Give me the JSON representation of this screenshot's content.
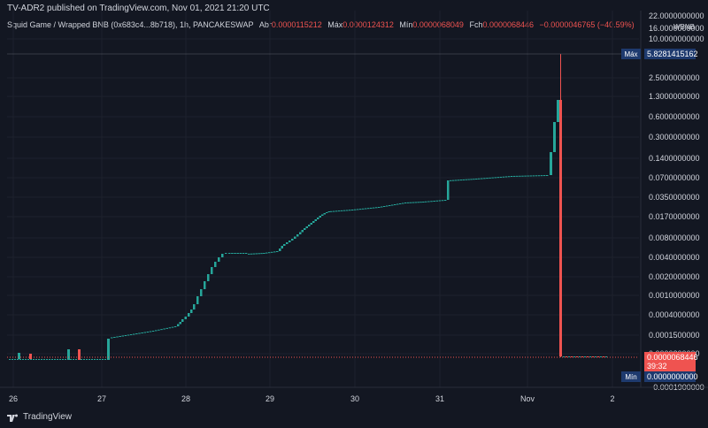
{
  "publisher_line": "TV-ADR2 published on TradingView.com, Nov 01, 2021 21:20 UTC",
  "legend": {
    "symbol": "Squid Game / Wrapped BNB (0x683c4...8b718), 1h, PANCAKESWAP",
    "open_label": "Abr",
    "open_value": "0.0000115212",
    "high_label": "Máx",
    "high_value": "0.0000124312",
    "low_label": "Mín",
    "low_value": "0.0000068049",
    "close_label": "Fch",
    "close_value": "0.0000068446",
    "change": "−0.0000046765 (−40.59%)"
  },
  "footer": {
    "brand": "TradingView"
  },
  "colors": {
    "up": "#26a69a",
    "down": "#ef5350",
    "background": "#131722",
    "grid": "#1e222d",
    "label_bg": "#1e3a6e"
  },
  "chart_data": {
    "type": "candlestick",
    "y_scale": "custom-compressed (log-like)",
    "axis_unit": "WBNB",
    "y_ticks": [
      "22.0000000000",
      "16.0000000000",
      "10.0000000000",
      "2.5000000000",
      "1.3000000000",
      "0.6000000000",
      "0.3000000000",
      "0.1400000000",
      "0.0700000000",
      "0.0350000000",
      "0.0170000000",
      "0.0080000000",
      "0.0040000000",
      "0.0020000000",
      "0.0010000000",
      "0.0004000000",
      "0.0001500000",
      "0.0000200000",
      "−0.0001900000"
    ],
    "x_ticks": [
      "26",
      "27",
      "28",
      "29",
      "30",
      "31",
      "Nov",
      "2"
    ],
    "max_label": "Máx",
    "max_value": "5.8281415162",
    "min_label": "Mín",
    "min_value": "0.0000000000",
    "last_price": "0.0000068446",
    "countdown": "39:32",
    "grid": true,
    "candles_summary": [
      {
        "x": "Oct 26",
        "close": "0.00002"
      },
      {
        "x": "Oct 27",
        "close": "0.00015"
      },
      {
        "x": "Oct 28",
        "close": "0.0015"
      },
      {
        "x": "Oct 28 late",
        "close": "0.004"
      },
      {
        "x": "Oct 29",
        "close": "0.005"
      },
      {
        "x": "Oct 30",
        "close": "0.02"
      },
      {
        "x": "Oct 31",
        "close": "0.07"
      },
      {
        "x": "Nov 1",
        "high": "5.8281415162",
        "close": "0.0000068446"
      }
    ]
  }
}
